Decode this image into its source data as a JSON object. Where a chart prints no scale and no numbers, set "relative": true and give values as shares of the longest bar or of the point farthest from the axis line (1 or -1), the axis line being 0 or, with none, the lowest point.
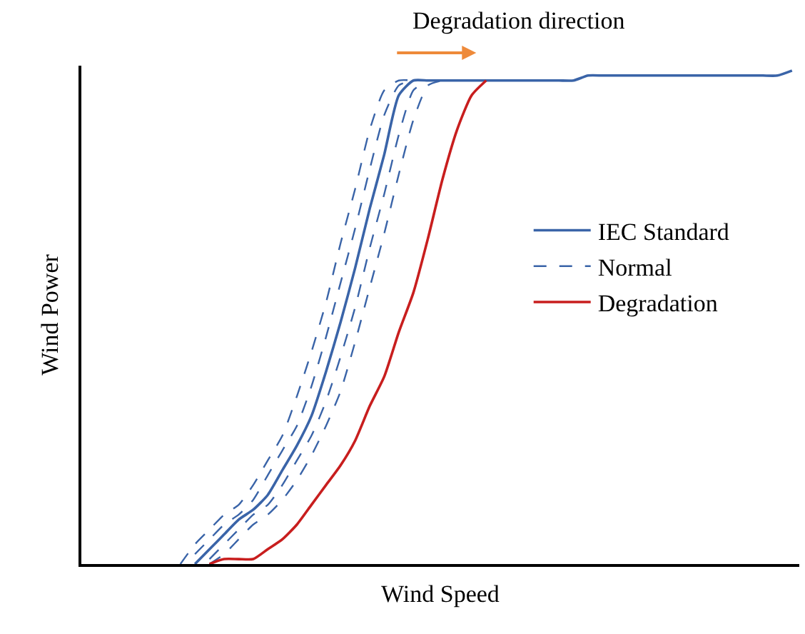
{
  "chart_data": {
    "type": "line",
    "relative": true,
    "xlabel": "Wind Speed",
    "ylabel": "Wind Power",
    "annotations": [
      "Degradation direction"
    ],
    "categories": [
      null,
      null,
      null,
      null,
      null,
      null,
      null,
      null,
      null,
      null,
      null,
      null,
      null,
      null,
      null,
      null,
      null,
      null,
      null,
      null,
      null,
      null,
      null,
      null,
      null,
      null,
      null,
      null,
      null,
      null,
      null,
      null,
      null,
      null,
      null,
      null,
      null,
      null,
      null,
      null,
      null,
      null,
      null,
      null,
      null,
      null,
      null,
      null,
      null,
      null
    ],
    "series": [
      {
        "name": "IEC Standard",
        "color": "#3a64a8",
        "line_style": "solid",
        "values": [
          null,
          null,
          null,
          null,
          null,
          null,
          null,
          null,
          0,
          0.03,
          0.06,
          0.09,
          0.11,
          0.14,
          0.19,
          0.24,
          0.3,
          0.39,
          0.49,
          0.6,
          0.72,
          0.83,
          0.95,
          0.98,
          0.98,
          0.98,
          0.98,
          0.98,
          0.98,
          0.98,
          0.98,
          0.98,
          0.98,
          0.98,
          0.98,
          0.99,
          0.99,
          0.99,
          0.99,
          0.99,
          0.99,
          0.99,
          0.99,
          0.99,
          0.99,
          0.99,
          0.99,
          0.99,
          0.99,
          1.0
        ]
      },
      {
        "name": "Normal",
        "color": "#3a64a8",
        "line_style": "dashed",
        "values": [
          null,
          null,
          null,
          null,
          null,
          null,
          null,
          0,
          0.04,
          0.07,
          0.1,
          0.12,
          0.16,
          0.21,
          0.26,
          0.34,
          0.43,
          0.53,
          0.65,
          0.76,
          0.88,
          0.96,
          0.98,
          0.98,
          null,
          null,
          null,
          null,
          null,
          null,
          null,
          null,
          null,
          null,
          null,
          null,
          null,
          null,
          null,
          null,
          null,
          null,
          null,
          null,
          null,
          null,
          null,
          null,
          null,
          null
        ]
      },
      {
        "color": "#3a64a8",
        "line_style": "dashed",
        "values": [
          null,
          null,
          null,
          null,
          null,
          null,
          null,
          null,
          0.02,
          0.05,
          0.08,
          0.1,
          0.13,
          0.18,
          0.23,
          0.28,
          0.36,
          0.46,
          0.57,
          0.68,
          0.8,
          0.91,
          0.97,
          0.98,
          null,
          null,
          null,
          null,
          null,
          null,
          null,
          null,
          null,
          null,
          null,
          null,
          null,
          null,
          null,
          null,
          null,
          null,
          null,
          null,
          null,
          null,
          null,
          null,
          null,
          null
        ]
      },
      {
        "color": "#3a64a8",
        "line_style": "dashed",
        "values": [
          null,
          null,
          null,
          null,
          null,
          null,
          null,
          null,
          null,
          0.01,
          0.04,
          0.07,
          0.1,
          0.12,
          0.16,
          0.21,
          0.26,
          0.33,
          0.42,
          0.52,
          0.64,
          0.75,
          0.87,
          0.96,
          0.98,
          null,
          null,
          null,
          null,
          null,
          null,
          null,
          null,
          null,
          null,
          null,
          null,
          null,
          null,
          null,
          null,
          null,
          null,
          null,
          null,
          null,
          null,
          null,
          null,
          null
        ]
      },
      {
        "color": "#3a64a8",
        "line_style": "dashed",
        "values": [
          null,
          null,
          null,
          null,
          null,
          null,
          null,
          null,
          null,
          0,
          0.02,
          0.05,
          0.08,
          0.1,
          0.13,
          0.17,
          0.22,
          0.28,
          0.35,
          0.45,
          0.56,
          0.67,
          0.79,
          0.9,
          0.97,
          0.98,
          null,
          null,
          null,
          null,
          null,
          null,
          null,
          null,
          null,
          null,
          null,
          null,
          null,
          null,
          null,
          null,
          null,
          null,
          null,
          null,
          null,
          null,
          null,
          null
        ]
      },
      {
        "name": "Degradation",
        "color": "#c81e1e",
        "line_style": "solid",
        "values": [
          null,
          null,
          null,
          null,
          null,
          null,
          null,
          null,
          null,
          0,
          0.01,
          0.01,
          0.01,
          0.03,
          0.05,
          0.08,
          0.12,
          0.16,
          0.2,
          0.25,
          0.32,
          0.38,
          0.47,
          0.55,
          0.66,
          0.78,
          0.88,
          0.95,
          0.98,
          null,
          null,
          null,
          null,
          null,
          null,
          null,
          null,
          null,
          null,
          null,
          null,
          null,
          null,
          null,
          null,
          null,
          null,
          null,
          null,
          null
        ]
      }
    ],
    "legend": "right",
    "marker": "none"
  }
}
